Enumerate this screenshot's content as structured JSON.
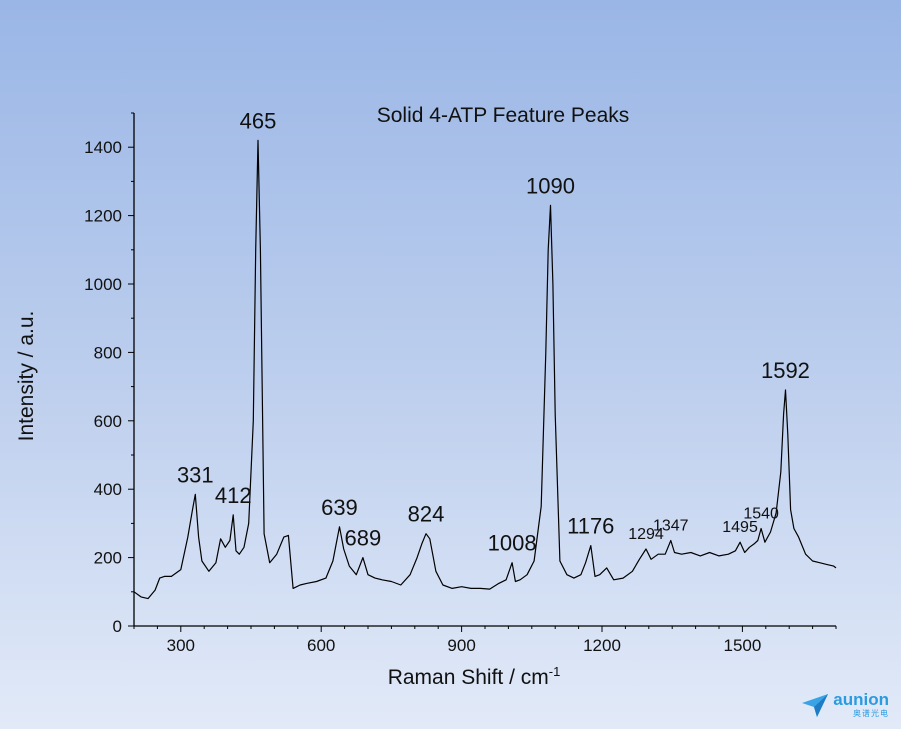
{
  "chart_data": {
    "type": "line",
    "title": "Solid 4-ATP Feature Peaks",
    "xlabel": "Raman Shift / cm",
    "xlabel_superscript": "-1",
    "ylabel": "Intensity / a.u.",
    "xlim": [
      200,
      1700
    ],
    "ylim": [
      0,
      1500
    ],
    "xticks": [
      300,
      600,
      900,
      1200,
      1500
    ],
    "yticks": [
      0,
      200,
      400,
      600,
      800,
      1000,
      1200,
      1400
    ],
    "grid": false,
    "series": [
      {
        "x": [
          200,
          215,
          230,
          245,
          255,
          265,
          280,
          300,
          315,
          325,
          331,
          338,
          345,
          360,
          375,
          385,
          395,
          405,
          412,
          418,
          425,
          435,
          445,
          455,
          460,
          465,
          470,
          478,
          490,
          505,
          520,
          530,
          540,
          555,
          570,
          590,
          610,
          625,
          639,
          648,
          660,
          675,
          689,
          700,
          715,
          730,
          750,
          770,
          790,
          805,
          815,
          824,
          832,
          845,
          860,
          880,
          900,
          920,
          940,
          960,
          980,
          995,
          1008,
          1015,
          1025,
          1040,
          1055,
          1070,
          1080,
          1085,
          1090,
          1095,
          1100,
          1110,
          1125,
          1140,
          1155,
          1165,
          1176,
          1185,
          1195,
          1210,
          1225,
          1245,
          1265,
          1280,
          1294,
          1305,
          1320,
          1335,
          1347,
          1355,
          1370,
          1390,
          1410,
          1430,
          1450,
          1470,
          1485,
          1495,
          1505,
          1515,
          1525,
          1533,
          1540,
          1548,
          1560,
          1572,
          1582,
          1588,
          1592,
          1597,
          1603,
          1610,
          1620,
          1635,
          1650,
          1665,
          1680,
          1695,
          1700
        ],
        "values": [
          100,
          85,
          80,
          105,
          140,
          145,
          145,
          165,
          260,
          340,
          385,
          260,
          190,
          160,
          185,
          255,
          230,
          250,
          325,
          220,
          210,
          230,
          300,
          600,
          1100,
          1420,
          1100,
          270,
          185,
          210,
          260,
          265,
          110,
          120,
          125,
          130,
          140,
          190,
          290,
          225,
          175,
          150,
          200,
          150,
          140,
          135,
          130,
          120,
          150,
          200,
          240,
          270,
          255,
          160,
          120,
          110,
          115,
          110,
          110,
          108,
          125,
          135,
          185,
          130,
          135,
          150,
          190,
          350,
          800,
          1100,
          1230,
          1000,
          620,
          190,
          150,
          140,
          150,
          185,
          235,
          145,
          150,
          170,
          135,
          140,
          160,
          195,
          225,
          195,
          210,
          210,
          250,
          215,
          210,
          215,
          205,
          215,
          205,
          210,
          220,
          245,
          215,
          230,
          240,
          250,
          285,
          245,
          275,
          330,
          450,
          620,
          690,
          560,
          340,
          285,
          260,
          210,
          190,
          185,
          180,
          175,
          170
        ]
      }
    ],
    "peak_labels": [
      {
        "x": 331,
        "y": 385,
        "text": "331",
        "size": "large"
      },
      {
        "x": 412,
        "y": 325,
        "text": "412",
        "size": "large"
      },
      {
        "x": 465,
        "y": 1420,
        "text": "465",
        "size": "large"
      },
      {
        "x": 639,
        "y": 290,
        "text": "639",
        "size": "large"
      },
      {
        "x": 689,
        "y": 200,
        "text": "689",
        "size": "large"
      },
      {
        "x": 824,
        "y": 270,
        "text": "824",
        "size": "large"
      },
      {
        "x": 1008,
        "y": 185,
        "text": "1008",
        "size": "large"
      },
      {
        "x": 1090,
        "y": 1230,
        "text": "1090",
        "size": "large"
      },
      {
        "x": 1176,
        "y": 235,
        "text": "1176",
        "size": "large"
      },
      {
        "x": 1294,
        "y": 225,
        "text": "1294",
        "size": "small"
      },
      {
        "x": 1347,
        "y": 250,
        "text": "1347",
        "size": "small"
      },
      {
        "x": 1495,
        "y": 245,
        "text": "1495",
        "size": "small"
      },
      {
        "x": 1540,
        "y": 285,
        "text": "1540",
        "size": "small"
      },
      {
        "x": 1592,
        "y": 690,
        "text": "1592",
        "size": "large"
      }
    ]
  },
  "logo": {
    "name": "aunion",
    "cn": "奥谱光电"
  }
}
